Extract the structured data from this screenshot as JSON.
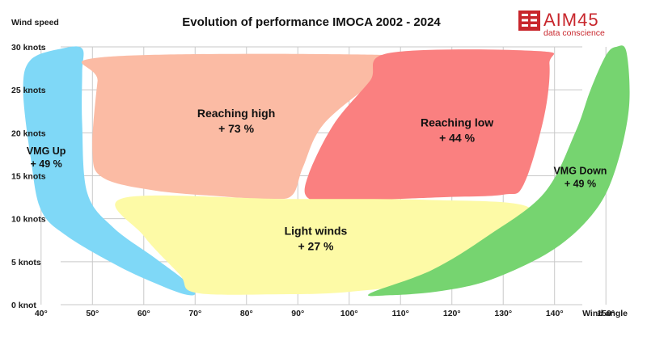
{
  "chart_data": {
    "type": "area",
    "title": "Evolution of performance IMOCA 2002 - 2024",
    "ylabel": "Wind speed",
    "xlabel": "Wind angle",
    "x_ticks": [
      "40°",
      "50°",
      "60°",
      "70°",
      "80°",
      "90°",
      "100°",
      "110°",
      "120°",
      "130°",
      "140°",
      "150°"
    ],
    "x_tick_values": [
      40,
      50,
      60,
      70,
      80,
      90,
      100,
      110,
      120,
      130,
      140,
      150
    ],
    "y_ticks": [
      "0 knot",
      "5 knots",
      "10 knots",
      "15 knots",
      "20 knots",
      "25 knots",
      "30 knots"
    ],
    "y_tick_values": [
      0,
      5,
      10,
      15,
      20,
      25,
      30
    ],
    "xlim": [
      32,
      158
    ],
    "ylim": [
      0,
      30
    ],
    "grid": true,
    "regions": [
      {
        "id": "vmg-up",
        "lines": [
          "VMG Up",
          "+ 49 %"
        ],
        "color": "#7fd8f7",
        "label_at": [
          41,
          17.2
        ],
        "outline": [
          [
            38,
            28.5
          ],
          [
            44,
            29.8
          ],
          [
            48,
            29.8
          ],
          [
            48,
            27
          ],
          [
            48,
            21
          ],
          [
            49,
            13
          ],
          [
            54,
            9
          ],
          [
            62,
            5.5
          ],
          [
            68,
            2.8
          ],
          [
            70,
            1.3
          ],
          [
            68,
            1.2
          ],
          [
            63,
            2.3
          ],
          [
            55,
            4.5
          ],
          [
            45,
            8
          ],
          [
            40,
            11
          ],
          [
            38,
            17
          ],
          [
            36.5,
            25
          ]
        ]
      },
      {
        "id": "reaching-high",
        "lines": [
          "Reaching high",
          "+ 73 %"
        ],
        "color": "#fbbba4",
        "label_at": [
          78,
          21.4
        ],
        "outline": [
          [
            52,
            28.8
          ],
          [
            104,
            29.1
          ],
          [
            110,
            28.2
          ],
          [
            105,
            26
          ],
          [
            95,
            21
          ],
          [
            91,
            16
          ],
          [
            89,
            12.8
          ],
          [
            85,
            12.3
          ],
          [
            75,
            12.6
          ],
          [
            62,
            13.3
          ],
          [
            52,
            14.8
          ],
          [
            50,
            18
          ],
          [
            51,
            26
          ]
        ]
      },
      {
        "id": "reaching-low",
        "lines": [
          "Reaching low",
          "+ 44 %"
        ],
        "color": "#fa8080",
        "label_at": [
          121,
          20.3
        ],
        "outline": [
          [
            108,
            29.3
          ],
          [
            137,
            29.5
          ],
          [
            139,
            28
          ],
          [
            138,
            22
          ],
          [
            134,
            14
          ],
          [
            130,
            12.8
          ],
          [
            118,
            12.5
          ],
          [
            98,
            12.1
          ],
          [
            92,
            12.4
          ],
          [
            92,
            15
          ],
          [
            97,
            21
          ],
          [
            104,
            26
          ]
        ]
      },
      {
        "id": "light-winds",
        "lines": [
          "Light winds",
          "+ 27 %"
        ],
        "color": "#fdfaa6",
        "label_at": [
          93.5,
          7.7
        ],
        "outline": [
          [
            56,
            12.4
          ],
          [
            88,
            12.3
          ],
          [
            115,
            12.2
          ],
          [
            135,
            11.3
          ],
          [
            128,
            7
          ],
          [
            117,
            3
          ],
          [
            100,
            1.5
          ],
          [
            85,
            1.2
          ],
          [
            70,
            1.4
          ],
          [
            67,
            3.5
          ],
          [
            60,
            8
          ]
        ]
      },
      {
        "id": "vmg-down",
        "lines": [
          "VMG Down",
          "+ 49 %"
        ],
        "color": "#76d470",
        "label_at": [
          145,
          14.9
        ],
        "outline": [
          [
            147,
            25
          ],
          [
            150,
            29
          ],
          [
            152,
            30
          ],
          [
            154,
            29.4
          ],
          [
            154.5,
            23
          ],
          [
            152,
            16
          ],
          [
            148,
            11
          ],
          [
            140,
            6.5
          ],
          [
            128,
            3
          ],
          [
            118,
            1.6
          ],
          [
            108,
            1.1
          ],
          [
            104,
            1.3
          ],
          [
            116,
            4
          ],
          [
            127,
            8
          ],
          [
            138,
            13
          ],
          [
            144,
            20
          ]
        ]
      }
    ]
  },
  "logo": {
    "name": "AIM45",
    "tagline": "data conscience",
    "color": "#c8262c"
  }
}
